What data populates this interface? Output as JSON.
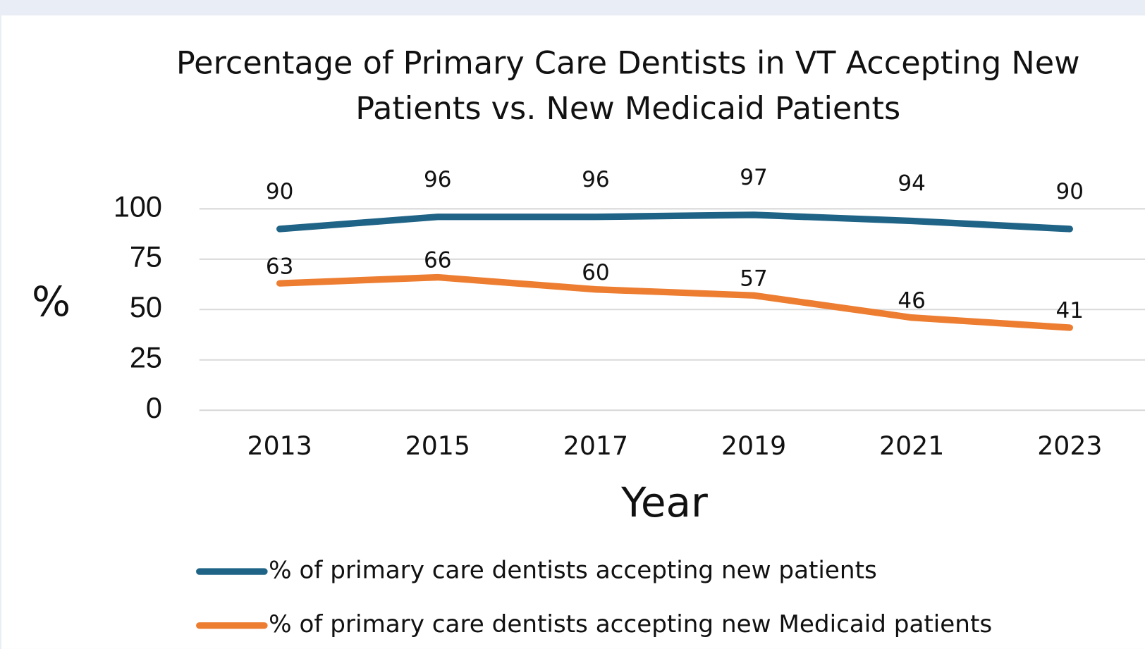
{
  "chart_data": {
    "type": "line",
    "title": "Percentage of Primary Care Dentists in VT Accepting New Patients vs. New Medicaid Patients",
    "x_label": "Year",
    "y_label": "%",
    "categories": [
      "2013",
      "2015",
      "2017",
      "2019",
      "2021",
      "2023"
    ],
    "series": [
      {
        "name": "% of primary care dentists accepting new patients",
        "color": "#1f6386",
        "values": [
          90,
          96,
          96,
          97,
          94,
          90
        ]
      },
      {
        "name": "% of primary care dentists accepting new Medicaid patients",
        "color": "#ed7d31",
        "values": [
          63,
          66,
          60,
          57,
          46,
          41
        ]
      }
    ],
    "ylim": [
      0,
      100
    ],
    "yticks": [
      0,
      25,
      50,
      75,
      100
    ],
    "grid": true,
    "legend": "bottom"
  }
}
